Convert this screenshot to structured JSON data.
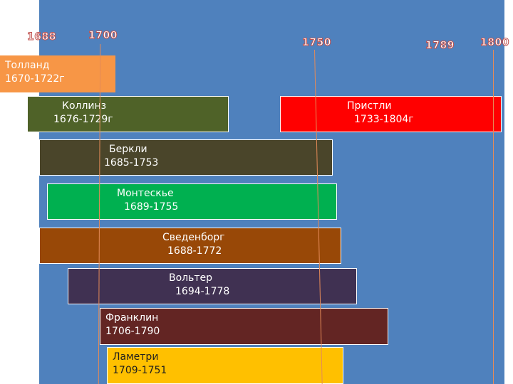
{
  "years": {
    "y1688": "1688",
    "y1700": "1700",
    "y1750": "1750",
    "y1789": "1789",
    "y1800": "1800"
  },
  "bars": {
    "tolland": {
      "name": "Толланд",
      "dates": "1670-1722г",
      "color": "#f79646"
    },
    "collins": {
      "name": "Коллинз",
      "dates": "1676-1729г",
      "color": "#4f6228"
    },
    "priestley": {
      "name": "Пристли",
      "dates": "1733-1804г",
      "color": "#ff0000"
    },
    "berkeley": {
      "name": "Беркли",
      "dates": "1685-1753",
      "color": "#4a452a"
    },
    "montesquieu": {
      "name": "Монтескье",
      "dates": "1689-1755",
      "color": "#00b050"
    },
    "swedenborg": {
      "name": "Сведенборг",
      "dates": "1688-1772",
      "color": "#984807"
    },
    "voltaire": {
      "name": "Вольтер",
      "dates": "1694-1778",
      "color": "#403152"
    },
    "franklin": {
      "name": "Франклин",
      "dates": "1706-1790",
      "color": "#632523"
    },
    "lamettrie": {
      "name": "Ламетри",
      "dates": "1709-1751",
      "color": "#ffc000"
    }
  }
}
